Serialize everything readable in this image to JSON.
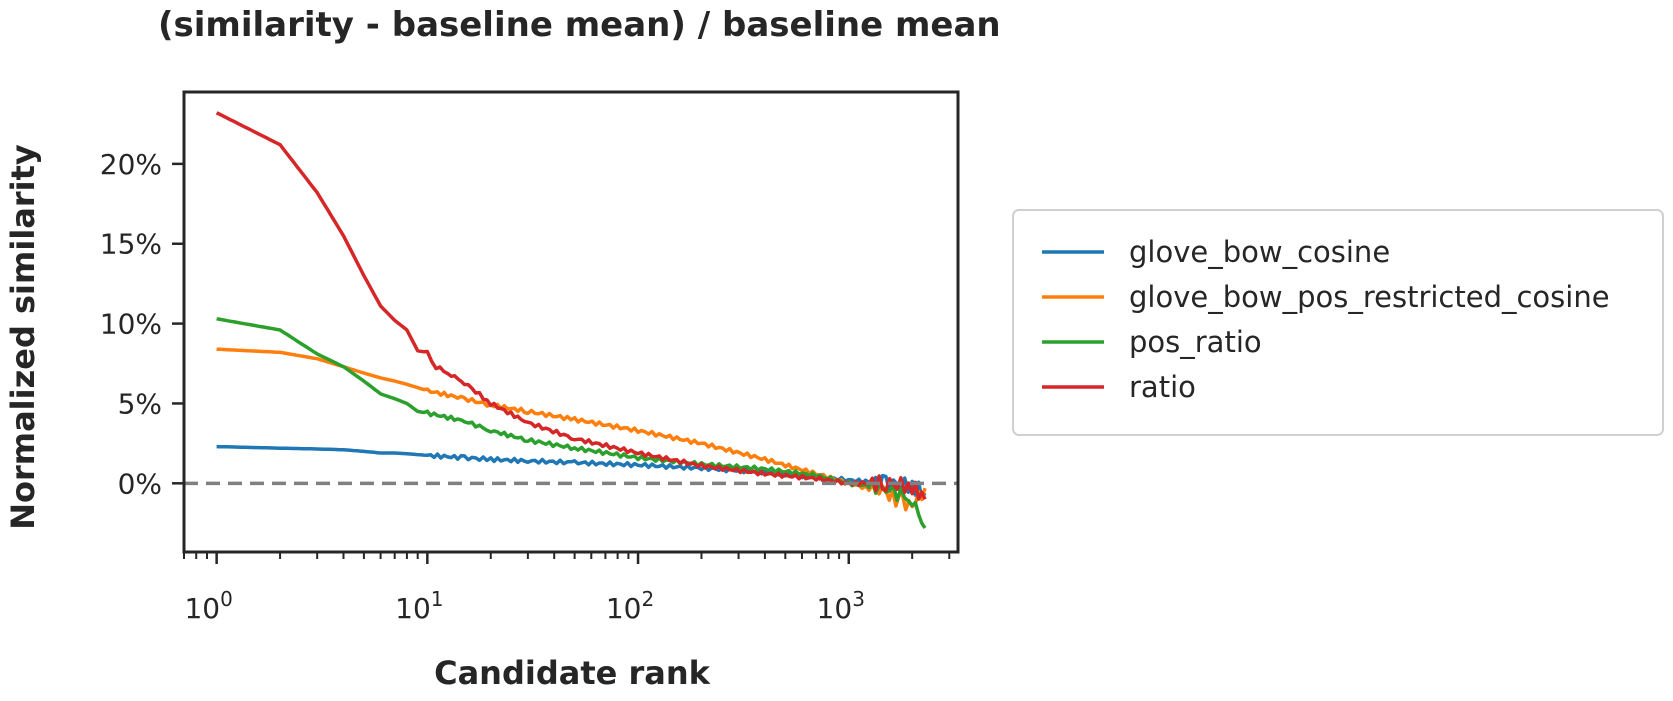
{
  "chart_data": {
    "type": "line",
    "title": "(similarity - baseline mean) / baseline mean",
    "xlabel": "Candidate rank",
    "ylabel": "Normalized similarity",
    "x_scale": "log",
    "xlim": [
      0.7,
      3300
    ],
    "ylim": [
      -4.3,
      24.5
    ],
    "x_ticks": [
      {
        "value": 1,
        "base": "10",
        "exp": "0"
      },
      {
        "value": 10,
        "base": "10",
        "exp": "1"
      },
      {
        "value": 100,
        "base": "10",
        "exp": "2"
      },
      {
        "value": 1000,
        "base": "10",
        "exp": "3"
      }
    ],
    "y_ticks": [
      {
        "value": 0,
        "label": "0%"
      },
      {
        "value": 5,
        "label": "5%"
      },
      {
        "value": 10,
        "label": "10%"
      },
      {
        "value": 15,
        "label": "15%"
      },
      {
        "value": 20,
        "label": "20%"
      }
    ],
    "reference_line": {
      "y": 0,
      "style": "dashed",
      "color": "#808080"
    },
    "legend_position": "right-outside",
    "grid": false,
    "series": [
      {
        "name": "glove_bow_cosine",
        "color": "#1f77b4",
        "points": [
          [
            1,
            2.3
          ],
          [
            2,
            2.2
          ],
          [
            3,
            2.15
          ],
          [
            4,
            2.1
          ],
          [
            5,
            2.0
          ],
          [
            6,
            1.9
          ],
          [
            7,
            1.9
          ],
          [
            8,
            1.85
          ],
          [
            10,
            1.75
          ],
          [
            15,
            1.6
          ],
          [
            20,
            1.5
          ],
          [
            30,
            1.4
          ],
          [
            50,
            1.3
          ],
          [
            100,
            1.15
          ],
          [
            200,
            0.95
          ],
          [
            400,
            0.7
          ],
          [
            700,
            0.4
          ],
          [
            1000,
            0.2
          ],
          [
            1500,
            0.0
          ],
          [
            2000,
            -0.2
          ],
          [
            2300,
            -0.6
          ]
        ]
      },
      {
        "name": "glove_bow_pos_restricted_cosine",
        "color": "#ff7f0e",
        "points": [
          [
            1,
            8.4
          ],
          [
            2,
            8.2
          ],
          [
            3,
            7.8
          ],
          [
            4,
            7.3
          ],
          [
            5,
            6.9
          ],
          [
            6,
            6.6
          ],
          [
            7,
            6.4
          ],
          [
            8,
            6.2
          ],
          [
            10,
            5.8
          ],
          [
            15,
            5.3
          ],
          [
            20,
            4.9
          ],
          [
            30,
            4.5
          ],
          [
            50,
            4.0
          ],
          [
            100,
            3.3
          ],
          [
            200,
            2.5
          ],
          [
            400,
            1.5
          ],
          [
            700,
            0.6
          ],
          [
            1000,
            0.0
          ],
          [
            1500,
            -0.6
          ],
          [
            1800,
            -1.2
          ],
          [
            2000,
            -1.4
          ],
          [
            2300,
            -0.3
          ]
        ]
      },
      {
        "name": "pos_ratio",
        "color": "#2ca02c",
        "points": [
          [
            1,
            10.3
          ],
          [
            2,
            9.6
          ],
          [
            3,
            8.1
          ],
          [
            4,
            7.3
          ],
          [
            5,
            6.4
          ],
          [
            6,
            5.6
          ],
          [
            7,
            5.3
          ],
          [
            8,
            5.0
          ],
          [
            9,
            4.5
          ],
          [
            10,
            4.4
          ],
          [
            15,
            3.9
          ],
          [
            20,
            3.3
          ],
          [
            30,
            2.7
          ],
          [
            50,
            2.2
          ],
          [
            100,
            1.6
          ],
          [
            200,
            1.2
          ],
          [
            400,
            0.9
          ],
          [
            700,
            0.5
          ],
          [
            1000,
            0.0
          ],
          [
            1500,
            -0.3
          ],
          [
            2000,
            -1.0
          ],
          [
            2300,
            -2.8
          ]
        ]
      },
      {
        "name": "ratio",
        "color": "#d62728",
        "points": [
          [
            1,
            23.2
          ],
          [
            2,
            21.2
          ],
          [
            3,
            18.2
          ],
          [
            4,
            15.5
          ],
          [
            5,
            13.0
          ],
          [
            6,
            11.1
          ],
          [
            7,
            10.2
          ],
          [
            8,
            9.6
          ],
          [
            9,
            8.3
          ],
          [
            10,
            8.2
          ],
          [
            11,
            7.3
          ],
          [
            13,
            6.8
          ],
          [
            15,
            6.3
          ],
          [
            20,
            5.0
          ],
          [
            30,
            3.8
          ],
          [
            50,
            2.8
          ],
          [
            100,
            1.9
          ],
          [
            200,
            1.1
          ],
          [
            400,
            0.6
          ],
          [
            700,
            0.3
          ],
          [
            1000,
            0.0
          ],
          [
            1500,
            0.0
          ],
          [
            2000,
            -0.2
          ],
          [
            2300,
            -1.0
          ]
        ]
      }
    ]
  }
}
